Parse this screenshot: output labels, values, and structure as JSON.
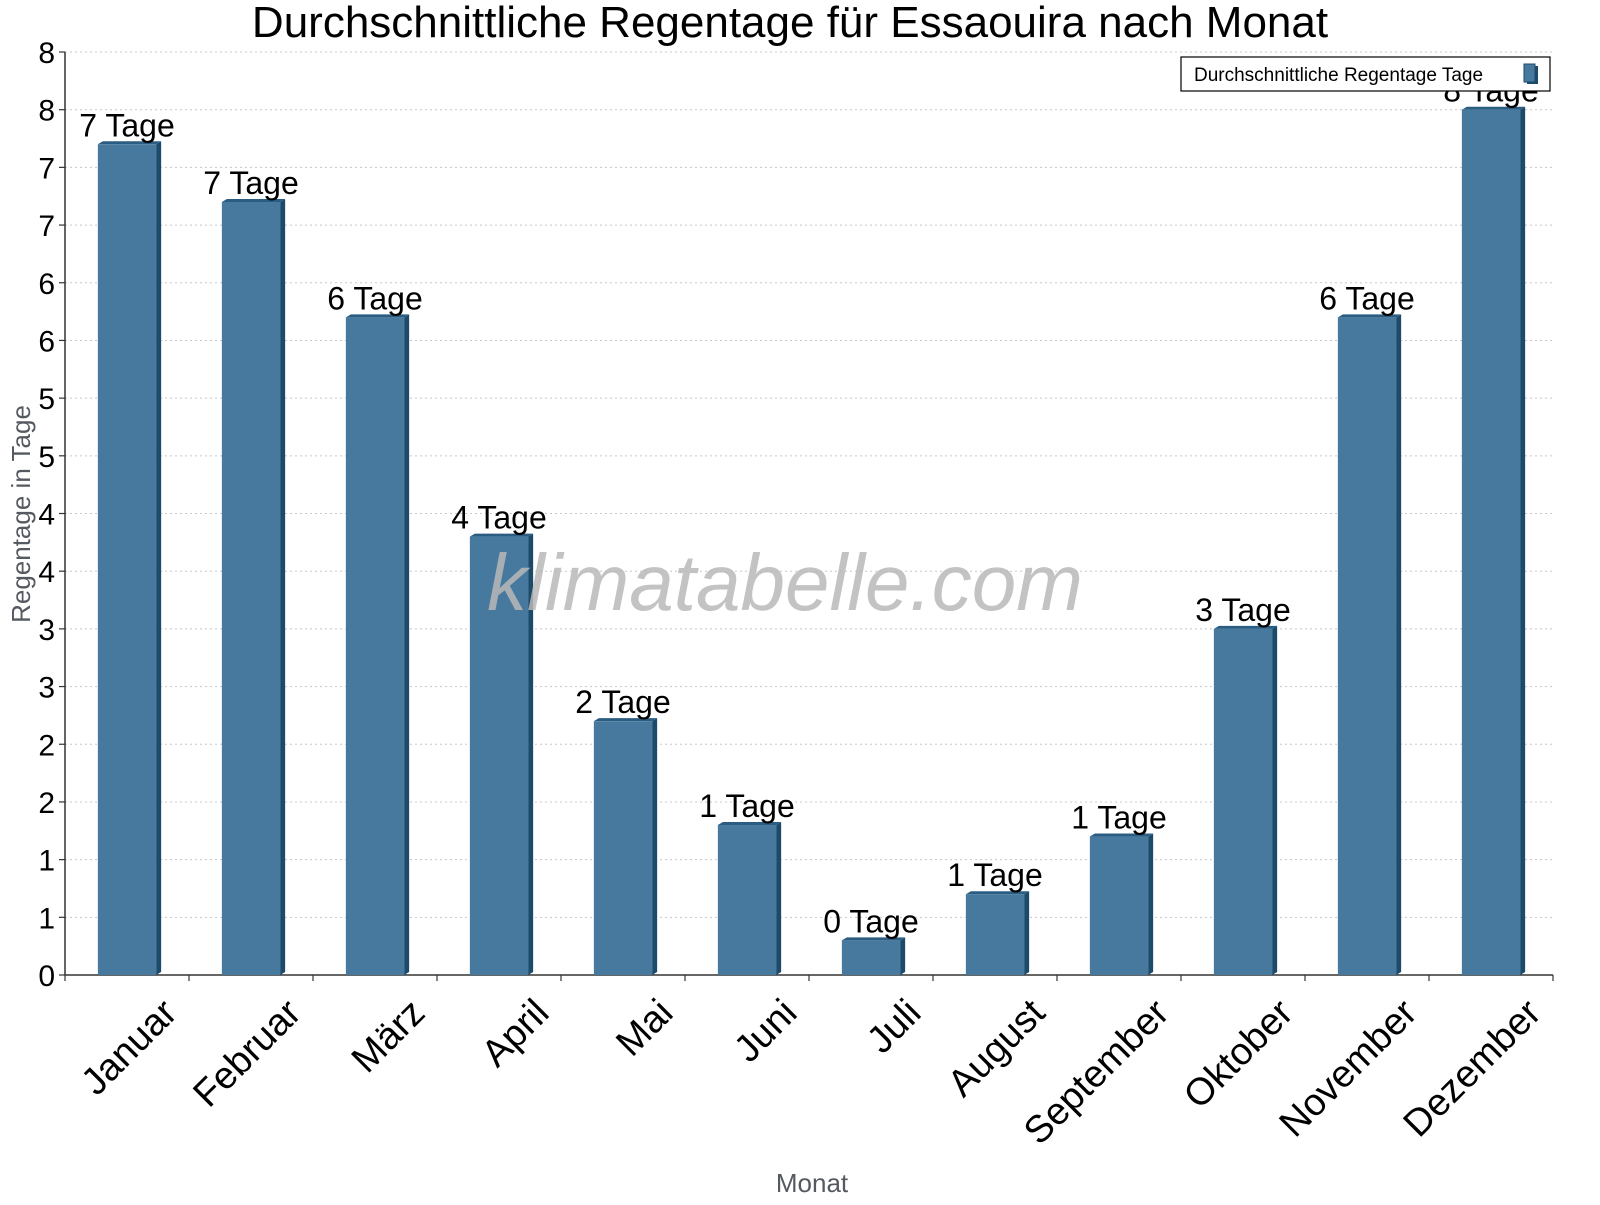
{
  "watermark": "klimatabelle.com",
  "chart_data": {
    "type": "bar",
    "title": "Durchschnittliche Regentage für Essaouira nach Monat",
    "xlabel": "Monat",
    "ylabel": "Regentage in Tage",
    "categories": [
      "Januar",
      "Februar",
      "März",
      "April",
      "Mai",
      "Juni",
      "Juli",
      "August",
      "September",
      "Oktober",
      "November",
      "Dezember"
    ],
    "series": [
      {
        "name": "Durchschnittliche Regentage Tage",
        "values": [
          7.2,
          6.7,
          5.7,
          3.8,
          2.2,
          1.3,
          0.3,
          0.7,
          1.2,
          3.0,
          5.7,
          7.5
        ],
        "labels": [
          "7 Tage",
          "7 Tage",
          "6 Tage",
          "4 Tage",
          "2 Tage",
          "1 Tage",
          "0 Tage",
          "1 Tage",
          "1 Tage",
          "3 Tage",
          "6 Tage",
          "8 Tage"
        ]
      }
    ],
    "ylim": [
      0,
      8
    ],
    "yticks": [
      0,
      0.5,
      1,
      1.5,
      2,
      2.5,
      3,
      3.5,
      4,
      4.5,
      5,
      5.5,
      6,
      6.5,
      7,
      7.5,
      8
    ],
    "ytick_labels": [
      "0",
      "1",
      "1",
      "2",
      "2",
      "3",
      "3",
      "4",
      "4",
      "5",
      "5",
      "6",
      "6",
      "7",
      "7",
      "8",
      "8"
    ],
    "grid": true,
    "legend_position": "top-right",
    "colors": {
      "bar_front": "#46799d",
      "bar_side": "#1c4a6b",
      "bar_top": "#2b5d82",
      "grid": "#c8c8c8",
      "axis": "#333333"
    }
  }
}
